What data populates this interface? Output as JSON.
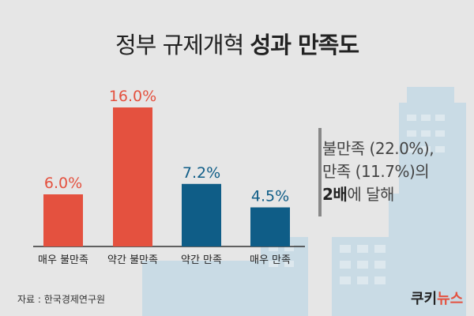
{
  "title": {
    "normal": "정부 규제개혁",
    "bold": "성과 만족도"
  },
  "note": {
    "line1": "불만족 (22.0%),",
    "line2": "만족 (11.7%)의",
    "bold": "2배",
    "rest": "에 달해"
  },
  "source": "자료 : 한국경제연구원",
  "logo": {
    "part1": "쿠키",
    "part2": "뉴스"
  },
  "colors": {
    "dissatisfied": "#e4513f",
    "satisfied": "#0f5d87",
    "background": "#e6e6e6",
    "buildings": "#c5d8e3"
  },
  "chart_data": {
    "type": "bar",
    "title": "정부 규제개혁 성과 만족도",
    "categories": [
      "매우 불만족",
      "약간 불만족",
      "약간 만족",
      "매우 만족"
    ],
    "values": [
      6.0,
      16.0,
      7.2,
      4.5
    ],
    "value_labels": [
      "6.0%",
      "16.0%",
      "7.2%",
      "4.5%"
    ],
    "colors": [
      "#e4513f",
      "#e4513f",
      "#0f5d87",
      "#0f5d87"
    ],
    "ylim": [
      0,
      16.0
    ],
    "grid": false,
    "legend": "none"
  }
}
